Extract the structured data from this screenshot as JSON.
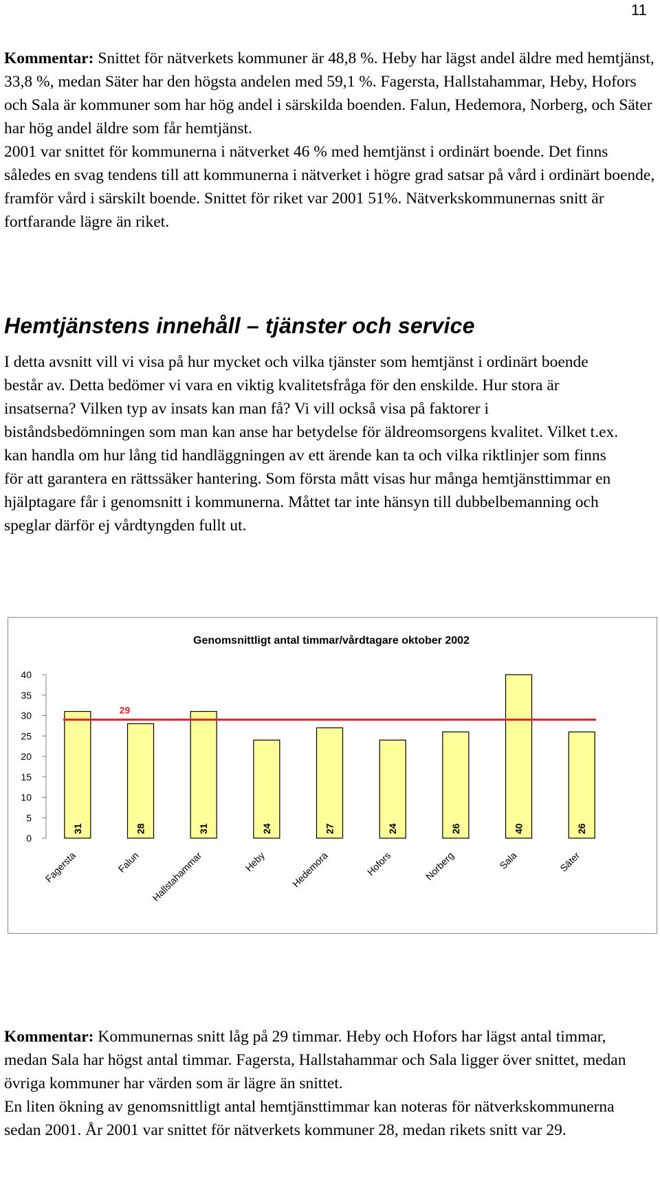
{
  "page_number": "11",
  "intro": {
    "label": "Kommentar:",
    "text1": " Snittet för nätverkets kommuner är 48,8 %. Heby har lägst andel äldre med hemtjänst, 33,8 %, medan Säter har den högsta andelen med 59,1 %. Fagersta, Hallstahammar, Heby, Hofors och Sala är kommuner som har hög andel i särskilda boenden. Falun, Hedemora, Norberg, och Säter har hög andel äldre som får hemtjänst.",
    "text2": "2001 var snittet för kommunerna i nätverket 46 % med hemtjänst i ordinärt boende. Det finns således en svag tendens till att kommunerna i nätverket i högre grad satsar på vård i ordinärt boende, framför vård i särskilt boende. Snittet för riket var 2001 51%. Nätverkskommunernas snitt är fortfarande lägre än riket."
  },
  "section": {
    "heading": "Hemtjänstens innehåll – tjänster och service",
    "body": "I detta avsnitt vill vi visa på hur mycket och vilka tjänster som hemtjänst i ordinärt boende består av. Detta bedömer vi vara en viktig kvalitetsfråga för den enskilde. Hur stora är insatserna? Vilken typ av insats kan man få? Vi vill också visa på faktorer i biståndsbedömningen som man kan anse har betydelse för äldreomsorgens kvalitet. Vilket t.ex. kan handla om hur lång tid handläggningen av ett ärende kan ta och vilka riktlinjer som finns för att garantera en rättssäker hantering. Som första mått visas hur många hemtjänsttimmar en hjälptagare får i genomsnitt i kommunerna. Måttet tar inte hänsyn till dubbelbemanning och speglar därför ej vårdtyngden fullt ut."
  },
  "chart_data": {
    "type": "bar",
    "title": "Genomsnittligt antal timmar/vårdtagare oktober 2002",
    "categories": [
      "Fagersta",
      "Falun",
      "Hallstahammar",
      "Heby",
      "Hedemora",
      "Hofors",
      "Norberg",
      "Sala",
      "Säter"
    ],
    "values": [
      31,
      28,
      31,
      24,
      27,
      24,
      26,
      40,
      26
    ],
    "value_labels": [
      "31",
      "28",
      "31",
      "24",
      "27",
      "24",
      "26",
      "40",
      "26"
    ],
    "yticks": [
      "0",
      "5",
      "10",
      "15",
      "20",
      "25",
      "30",
      "35",
      "40"
    ],
    "ylim": [
      0,
      40
    ],
    "average_line": 29,
    "average_label": "29",
    "bar_color": "#ffff99",
    "line_color": "#e8232e",
    "label_color": "#e8232e",
    "grid": false,
    "legend": "none"
  },
  "comment": {
    "label": "Kommentar:",
    "text1": " Kommunernas snitt låg på 29 timmar. Heby och Hofors har lägst antal timmar, medan Sala har högst antal timmar. Fagersta, Hallstahammar och Sala ligger över snittet, medan övriga kommuner har värden som är lägre än snittet.",
    "text2": "En liten ökning av genomsnittligt antal hemtjänsttimmar kan noteras för nätverkskommunerna sedan 2001. År 2001 var snittet för nätverkets kommuner 28, medan rikets snitt var 29."
  }
}
